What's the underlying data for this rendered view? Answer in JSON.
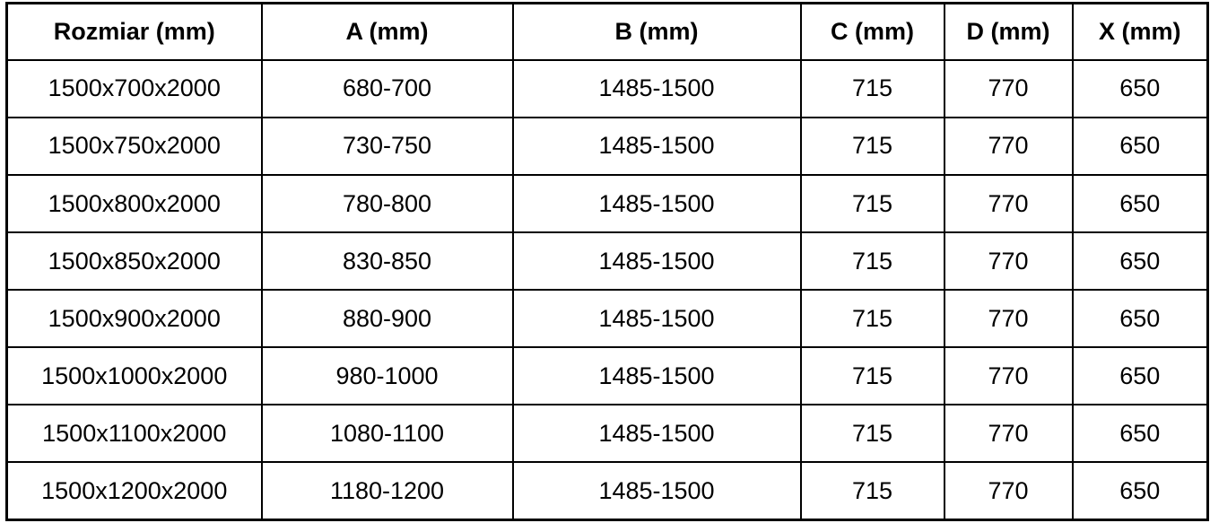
{
  "table": {
    "headers": [
      {
        "id": "rozmiar",
        "label": "Rozmiar (mm)"
      },
      {
        "id": "a",
        "label": "A (mm)"
      },
      {
        "id": "b",
        "label": "B (mm)"
      },
      {
        "id": "c",
        "label": "C (mm)"
      },
      {
        "id": "d",
        "label": "D (mm)"
      },
      {
        "id": "x",
        "label": "X (mm)"
      }
    ],
    "rows": [
      [
        "1500x700x2000",
        "680-700",
        "1485-1500",
        "715",
        "770",
        "650"
      ],
      [
        "1500x750x2000",
        "730-750",
        "1485-1500",
        "715",
        "770",
        "650"
      ],
      [
        "1500x800x2000",
        "780-800",
        "1485-1500",
        "715",
        "770",
        "650"
      ],
      [
        "1500x850x2000",
        "830-850",
        "1485-1500",
        "715",
        "770",
        "650"
      ],
      [
        "1500x900x2000",
        "880-900",
        "1485-1500",
        "715",
        "770",
        "650"
      ],
      [
        "1500x1000x2000",
        "980-1000",
        "1485-1500",
        "715",
        "770",
        "650"
      ],
      [
        "1500x1100x2000",
        "1080-1100",
        "1485-1500",
        "715",
        "770",
        "650"
      ],
      [
        "1500x1200x2000",
        "1180-1200",
        "1485-1500",
        "715",
        "770",
        "650"
      ]
    ]
  },
  "colors": {
    "border": "#000000",
    "text": "#000000",
    "background": "#ffffff"
  }
}
